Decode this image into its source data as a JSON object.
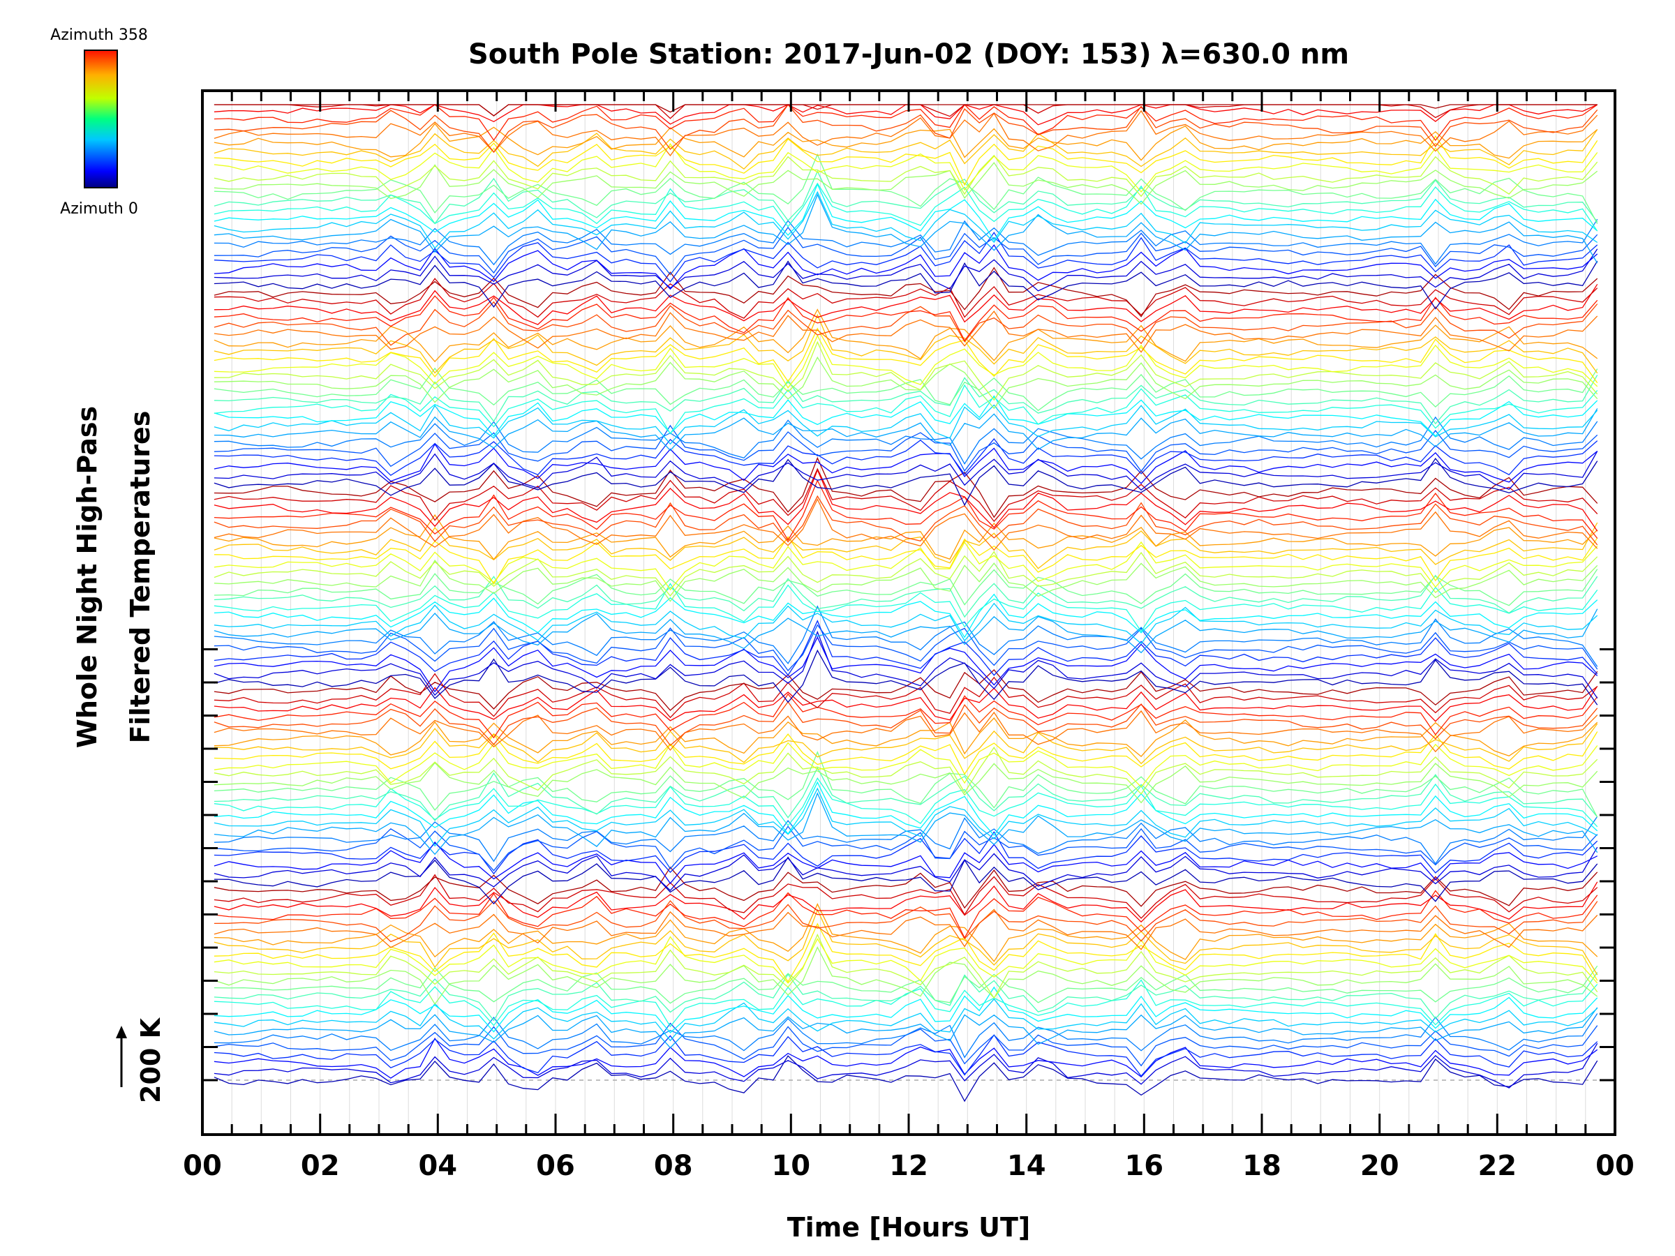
{
  "chart_data": {
    "type": "line",
    "title": "South Pole Station: 2017-Jun-02 (DOY: 153) λ=630.0 nm",
    "xlabel": "Time [Hours UT]",
    "ylabel_line1": "Whole Night High-Pass",
    "ylabel_line2": "Filtered Temperatures",
    "scale_label": "200 K",
    "xlim": [
      0,
      24
    ],
    "x_tick_labels": [
      "00",
      "02",
      "04",
      "06",
      "08",
      "10",
      "12",
      "14",
      "16",
      "18",
      "20",
      "22",
      "00"
    ],
    "colorbar": {
      "top_label": "Azimuth  358",
      "bottom_label": "Azimuth  0",
      "range": [
        0,
        358
      ]
    },
    "traces": {
      "count": 120,
      "per_group": 24,
      "groups": 5,
      "group_spacing_k": 600,
      "trace_spacing_k": 25,
      "sample_interval_h": 0.25
    },
    "spike_events_hours": [
      3.3,
      4.0,
      4.9,
      5.6,
      6.6,
      8.0,
      9.1,
      10.0,
      10.4,
      10.5,
      12.1,
      12.6,
      12.9,
      13.4,
      14.3,
      15.9,
      16.6,
      21.0,
      22.1,
      23.7
    ]
  }
}
